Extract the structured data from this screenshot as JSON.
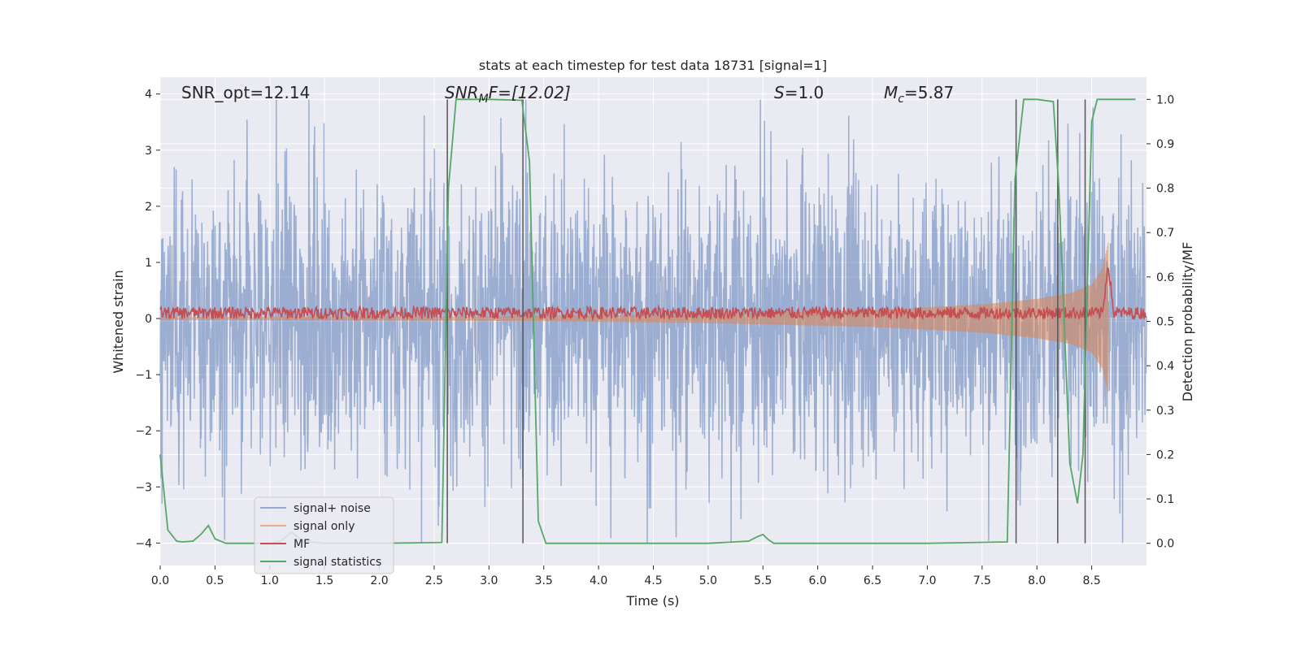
{
  "chart_data": {
    "type": "line",
    "title": "stats at each timestep for test data 18731 [signal=1]",
    "xlabel": "Time (s)",
    "ylabel": "Whitened strain",
    "y2label": "Detection probability/MF",
    "xlim": [
      0.0,
      9.0
    ],
    "ylim": [
      -4.4,
      4.3
    ],
    "y2lim": [
      -0.05,
      1.05
    ],
    "grid": true,
    "legend_position": "lower-left",
    "x_ticks": [
      "0.0",
      "0.5",
      "1.0",
      "1.5",
      "2.0",
      "2.5",
      "3.0",
      "3.5",
      "4.0",
      "4.5",
      "5.0",
      "5.5",
      "6.0",
      "6.5",
      "7.0",
      "7.5",
      "8.0",
      "8.5"
    ],
    "y_ticks": [
      "−4",
      "−3",
      "−2",
      "−1",
      "0",
      "1",
      "2",
      "3",
      "4"
    ],
    "y2_ticks": [
      "0.0",
      "0.1",
      "0.2",
      "0.3",
      "0.4",
      "0.5",
      "0.6",
      "0.7",
      "0.8",
      "0.9",
      "1.0"
    ],
    "annotations": {
      "snr_opt": "SNR_opt=12.14",
      "snr_mf_main": "SNR",
      "snr_mf_sub": "M",
      "snr_mf_rest": "F=[12.02]",
      "s_italic": "S",
      "s_rest": "=1.0",
      "mc_main": "M",
      "mc_sub": "c",
      "mc_rest": "=5.87"
    },
    "colors": {
      "background": "#eaeaf2",
      "grid": "#ffffff",
      "noise": "#4c72b0",
      "signal": "#dd8452",
      "mf": "#c44e52",
      "stat": "#55a868",
      "vline": "#555555"
    },
    "series": [
      {
        "name": "signal+ noise",
        "description": "noise band",
        "amplitude_envelope": [
          -3.0,
          3.0
        ],
        "peak_min": -4.0,
        "peak_max": 3.9
      },
      {
        "name": "signal only",
        "envelope_x": [
          0.0,
          3.0,
          5.0,
          6.5,
          7.5,
          8.0,
          8.3,
          8.5,
          8.6,
          8.65
        ],
        "envelope_amp": [
          0.02,
          0.04,
          0.08,
          0.15,
          0.25,
          0.35,
          0.45,
          0.6,
          0.9,
          1.35
        ]
      },
      {
        "name": "MF",
        "baseline": 0.1,
        "peak_x": 8.65,
        "peak_y": 1.0
      },
      {
        "name": "signal statistics",
        "x": [
          0.0,
          0.07,
          0.15,
          0.2,
          0.3,
          0.37,
          0.44,
          0.5,
          0.6,
          1.0,
          1.1,
          1.2,
          1.3,
          1.5,
          2.0,
          2.57,
          2.63,
          2.7,
          3.0,
          3.3,
          3.37,
          3.45,
          3.52,
          4.0,
          5.0,
          5.37,
          5.45,
          5.5,
          5.55,
          5.6,
          6.0,
          7.0,
          7.73,
          7.8,
          7.88,
          8.0,
          8.15,
          8.2,
          8.3,
          8.37,
          8.42,
          8.5,
          8.55,
          8.6,
          8.9
        ],
        "y": [
          0.2,
          0.03,
          0.005,
          0.003,
          0.005,
          0.02,
          0.04,
          0.01,
          0.0,
          0.0,
          0.005,
          0.025,
          0.005,
          0.0,
          0.0,
          0.002,
          0.8,
          1.0,
          1.0,
          0.998,
          0.86,
          0.05,
          0.0,
          0.0,
          0.0,
          0.005,
          0.015,
          0.02,
          0.008,
          0.0,
          0.0,
          0.0,
          0.003,
          0.82,
          1.0,
          1.0,
          0.995,
          0.8,
          0.18,
          0.09,
          0.2,
          0.95,
          1.0,
          1.0,
          1.0
        ]
      }
    ],
    "vertical_lines": [
      2.62,
      3.31,
      7.81,
      8.19,
      8.44
    ]
  }
}
